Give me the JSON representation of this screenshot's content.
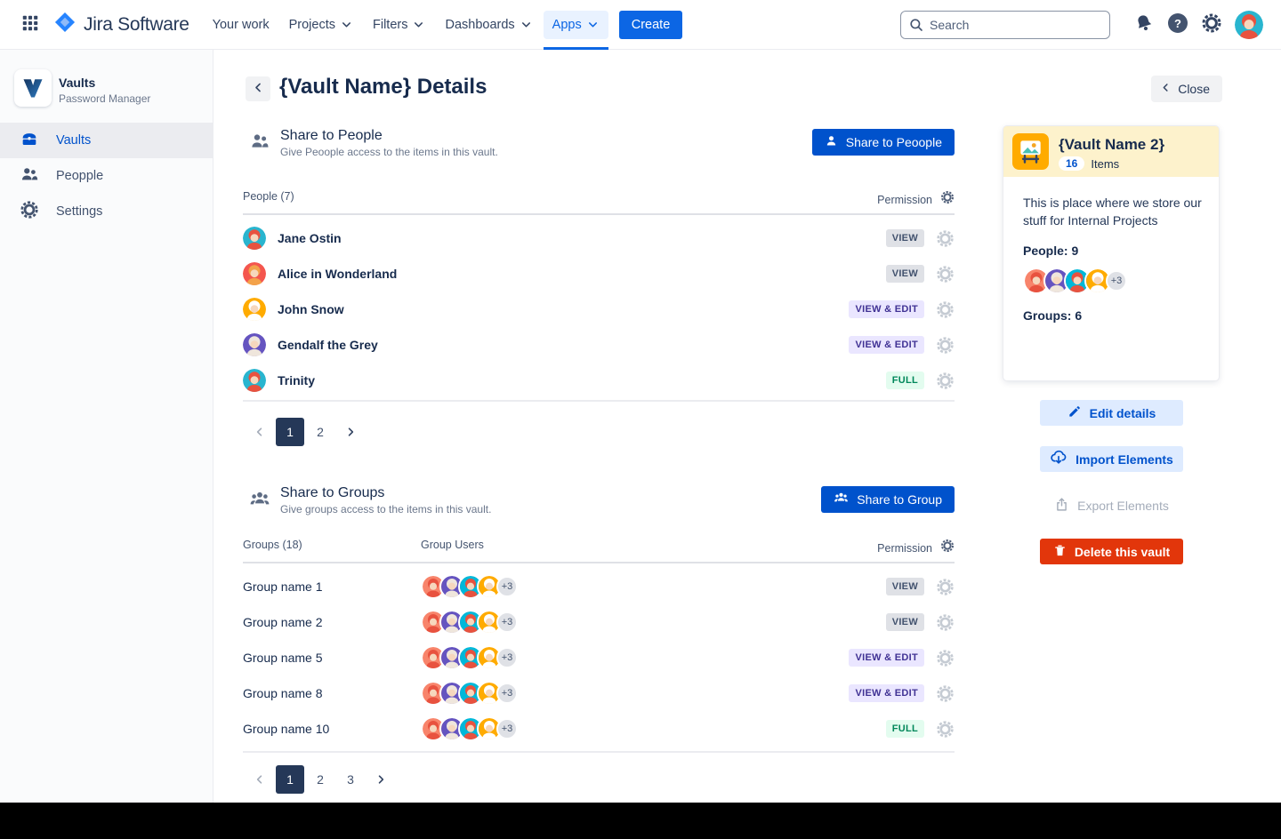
{
  "topnav": {
    "logo_text": "Jira Software",
    "items": [
      {
        "label": "Your work",
        "has_chevron": false,
        "active": false
      },
      {
        "label": "Projects",
        "has_chevron": true,
        "active": false
      },
      {
        "label": "Filters",
        "has_chevron": true,
        "active": false
      },
      {
        "label": "Dashboards",
        "has_chevron": true,
        "active": false
      },
      {
        "label": "Apps",
        "has_chevron": true,
        "active": true
      }
    ],
    "create_label": "Create",
    "search_placeholder": "Search"
  },
  "sidebar": {
    "app_title": "Vaults",
    "app_subtitle": "Password Manager",
    "items": [
      {
        "label": "Vaults",
        "active": true
      },
      {
        "label": "Peopple",
        "active": false
      },
      {
        "label": "Settings",
        "active": false
      }
    ]
  },
  "header": {
    "title": "{Vault Name} Details",
    "close_label": "Close"
  },
  "share_people": {
    "title": "Share to People",
    "subtitle": "Give Peoople  access to the items in this vault.",
    "button_label": "Share to Peoople",
    "col_people": "People (7)",
    "col_permission": "Permission",
    "rows": [
      {
        "name": "Jane Ostin",
        "avatar": "jane",
        "permission": "VIEW",
        "perm_type": "view"
      },
      {
        "name": "Alice in Wonderland",
        "avatar": "alice",
        "permission": "VIEW",
        "perm_type": "view"
      },
      {
        "name": "John Snow",
        "avatar": "john",
        "permission": "VIEW & EDIT",
        "perm_type": "view_edit"
      },
      {
        "name": "Gendalf the Grey",
        "avatar": "gendalf",
        "permission": "VIEW & EDIT",
        "perm_type": "view_edit"
      },
      {
        "name": "Trinity",
        "avatar": "trinity",
        "permission": "FULL",
        "perm_type": "full"
      }
    ],
    "pagination": {
      "pages": [
        "1",
        "2"
      ],
      "active": "1"
    }
  },
  "share_groups": {
    "title": "Share to Groups",
    "subtitle": "Give groups  access to the items in this vault.",
    "button_label": "Share to Group",
    "col_groups": "Groups (18)",
    "col_users": "Group Users",
    "col_permission": "Permission",
    "rows": [
      {
        "name": "Group name 1",
        "extra": "+3",
        "permission": "VIEW",
        "perm_type": "view"
      },
      {
        "name": "Group name 2",
        "extra": "+3",
        "permission": "VIEW",
        "perm_type": "view"
      },
      {
        "name": "Group name 5",
        "extra": "+3",
        "permission": "VIEW & EDIT",
        "perm_type": "view_edit"
      },
      {
        "name": "Group name 8",
        "extra": "+3",
        "permission": "VIEW & EDIT",
        "perm_type": "view_edit"
      },
      {
        "name": "Group name 10",
        "extra": "+3",
        "permission": "FULL",
        "perm_type": "full"
      }
    ],
    "pagination": {
      "pages": [
        "1",
        "2",
        "3"
      ],
      "active": "1"
    }
  },
  "detail_card": {
    "title": "{Vault Name 2}",
    "items_count": "16",
    "items_label": "Items",
    "description": "This is place where we store our stuff for Internal Projects",
    "people_label": "People: 9",
    "people_extra": "+3",
    "groups_label": "Groups: 6"
  },
  "actions": {
    "edit": "Edit details",
    "import": "Import  Elements",
    "export": "Export Elements",
    "delete": "Delete this vault"
  },
  "avatar_stack": [
    "salmon",
    "violet",
    "cyan",
    "amber"
  ],
  "avatars": {
    "jane": {
      "bg": "#29B5CF",
      "hair": "#E8523F",
      "skin": "#F6D7BD"
    },
    "alice": {
      "bg": "#F4564E",
      "hair": "#F3A24A",
      "skin": "#F6D7BD"
    },
    "john": {
      "bg": "#FFAB00",
      "hair": "#FFFFFF",
      "skin": "#F6D7BD"
    },
    "gendalf": {
      "bg": "#6554C0",
      "hair": "#EFE6DC",
      "skin": "#F6D7BD"
    },
    "trinity": {
      "bg": "#29B5CF",
      "hair": "#E8523F",
      "skin": "#F6D7BD"
    },
    "salmon": {
      "bg": "#F8846B",
      "hair": "#E8523F",
      "skin": "#F6D7BD"
    },
    "violet": {
      "bg": "#6554C0",
      "hair": "#EFE6DC",
      "skin": "#F6D7BD"
    },
    "cyan": {
      "bg": "#00B8D9",
      "hair": "#E8523F",
      "skin": "#F6D7BD"
    },
    "amber": {
      "bg": "#FFAB00",
      "hair": "#FFFFFF",
      "skin": "#F6D7BD"
    }
  },
  "colors": {
    "accent": "#0052CC",
    "nav_active": "#0C66E4",
    "danger": "#E2360B",
    "card_header": "#FDF2CC",
    "badge_view_bg": "#DFE1E6",
    "badge_view_edit_bg": "#EAE6FF",
    "badge_full_bg": "#E3FCEF"
  }
}
